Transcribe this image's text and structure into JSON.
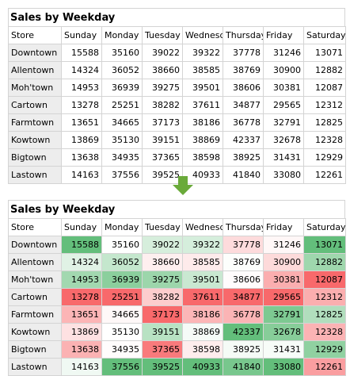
{
  "title": "Sales by Weekday",
  "columns": [
    "Store",
    "Sunday",
    "Monday",
    "Tuesday",
    "Wednesday",
    "Thursday",
    "Friday",
    "Saturday"
  ],
  "rows": [
    {
      "store": "Downtown",
      "values": [
        15588,
        35160,
        39022,
        39322,
        37778,
        31246,
        13071
      ]
    },
    {
      "store": "Allentown",
      "values": [
        14324,
        36052,
        38660,
        38585,
        38769,
        30900,
        12882
      ]
    },
    {
      "store": "Moh'town",
      "values": [
        14953,
        36939,
        39275,
        39501,
        38606,
        30381,
        12087
      ]
    },
    {
      "store": "Cartown",
      "values": [
        13278,
        25251,
        38282,
        37611,
        34877,
        29565,
        12312
      ]
    },
    {
      "store": "Farmtown",
      "values": [
        13651,
        34665,
        37173,
        38186,
        36778,
        32791,
        12825
      ]
    },
    {
      "store": "Kowtown",
      "values": [
        13869,
        35130,
        39151,
        38869,
        42337,
        32678,
        12328
      ]
    },
    {
      "store": "Bigtown",
      "values": [
        13638,
        34935,
        37365,
        38598,
        38925,
        31431,
        12929
      ]
    },
    {
      "store": "Lastown",
      "values": [
        14163,
        37556,
        39525,
        40933,
        41840,
        33080,
        12261
      ]
    }
  ],
  "colors": {
    "grid": "#d4d4d4",
    "label_shade": "#ededed",
    "heat_low": "#f8696b",
    "heat_mid": "#ffffff",
    "heat_high": "#63be7b",
    "arrow": "#6aaa3a"
  },
  "arrow_icon": "down-arrow-icon"
}
